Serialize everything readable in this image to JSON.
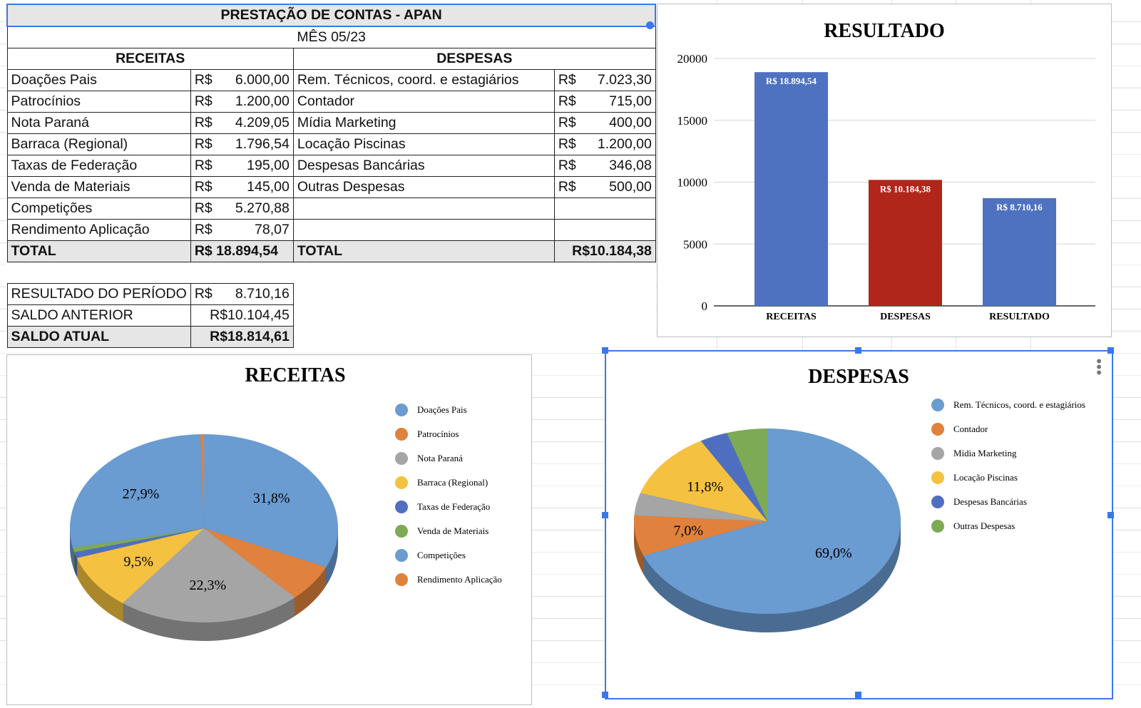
{
  "sheet": {
    "title": "PRESTAÇÃO DE CONTAS - APAN",
    "month": "MÊS 05/23",
    "receitas_header": "RECEITAS",
    "despesas_header": "DESPESAS",
    "currency": "R$",
    "rows": [
      {
        "r_label": "Doações Pais",
        "r_value": "6.000,00",
        "d_label": "Rem. Técnicos, coord. e estagiários",
        "d_value": "7.023,30"
      },
      {
        "r_label": "Patrocínios",
        "r_value": "1.200,00",
        "d_label": "Contador",
        "d_value": "715,00"
      },
      {
        "r_label": "Nota Paraná",
        "r_value": "4.209,05",
        "d_label": "Mídia Marketing",
        "d_value": "400,00"
      },
      {
        "r_label": "Barraca (Regional)",
        "r_value": "1.796,54",
        "d_label": "Locação Piscinas",
        "d_value": "1.200,00"
      },
      {
        "r_label": "Taxas de Federação",
        "r_value": "195,00",
        "d_label": "Despesas Bancárias",
        "d_value": "346,08"
      },
      {
        "r_label": "Venda de Materiais",
        "r_value": "145,00",
        "d_label": "Outras Despesas",
        "d_value": "500,00"
      },
      {
        "r_label": "Competições",
        "r_value": "5.270,88",
        "d_label": "",
        "d_value": ""
      },
      {
        "r_label": "Rendimento Aplicação",
        "r_value": "78,07",
        "d_label": "",
        "d_value": ""
      }
    ],
    "total_label": "TOTAL",
    "total_receitas": "R$ 18.894,54",
    "total_despesas": "R$10.184,38",
    "resultado_label": "RESULTADO DO PERÍODO",
    "resultado_value": "8.710,16",
    "saldo_anterior_label": "SALDO ANTERIOR",
    "saldo_anterior_value": "R$10.104,45",
    "saldo_atual_label": "SALDO ATUAL",
    "saldo_atual_value": "R$18.814,61"
  },
  "chart_data": [
    {
      "type": "bar",
      "title": "RESULTADO",
      "categories": [
        "RECEITAS",
        "DESPESAS",
        "RESULTADO"
      ],
      "values": [
        18894.54,
        10184.38,
        8710.16
      ],
      "data_labels": [
        "R$ 18.894,54",
        "R$ 10.184,38",
        "R$ 8.710,16"
      ],
      "colors": [
        "#4e72c0",
        "#b0261a",
        "#4e72c0"
      ],
      "ylim": [
        0,
        20000
      ],
      "yticks": [
        0,
        5000,
        10000,
        15000,
        20000
      ],
      "grid": true
    },
    {
      "type": "pie",
      "title": "RECEITAS",
      "three_d": true,
      "legend": "right",
      "labels": [
        "Doações Pais",
        "Patrocínios",
        "Nota Paraná",
        "Barraca (Regional)",
        "Taxas de Federação",
        "Venda de Materiais",
        "Competições",
        "Rendimento Aplicação"
      ],
      "values": [
        6000.0,
        1200.0,
        4209.05,
        1796.54,
        195.0,
        145.0,
        5270.88,
        78.07
      ],
      "colors": [
        "#6a9bd1",
        "#e0823d",
        "#a5a5a5",
        "#f5c140",
        "#4e6fc0",
        "#7daa55",
        "#6a9bd1",
        "#e0823d"
      ],
      "slice_labels": [
        "31,8%",
        "",
        "22,3%",
        "9,5%",
        "",
        "",
        "27,9%",
        ""
      ]
    },
    {
      "type": "pie",
      "title": "DESPESAS",
      "three_d": true,
      "legend": "right",
      "labels": [
        "Rem. Técnicos, coord. e estagiários",
        "Contador",
        "Mídia Marketing",
        "Locação Piscinas",
        "Despesas Bancárias",
        "Outras Despesas"
      ],
      "values": [
        7023.3,
        715.0,
        400.0,
        1200.0,
        346.08,
        500.0
      ],
      "colors": [
        "#6a9bd1",
        "#e0823d",
        "#a5a5a5",
        "#f5c140",
        "#4e6fc0",
        "#7daa55"
      ],
      "slice_labels": [
        "69,0%",
        "7,0%",
        "",
        "11,8%",
        "",
        ""
      ]
    }
  ]
}
